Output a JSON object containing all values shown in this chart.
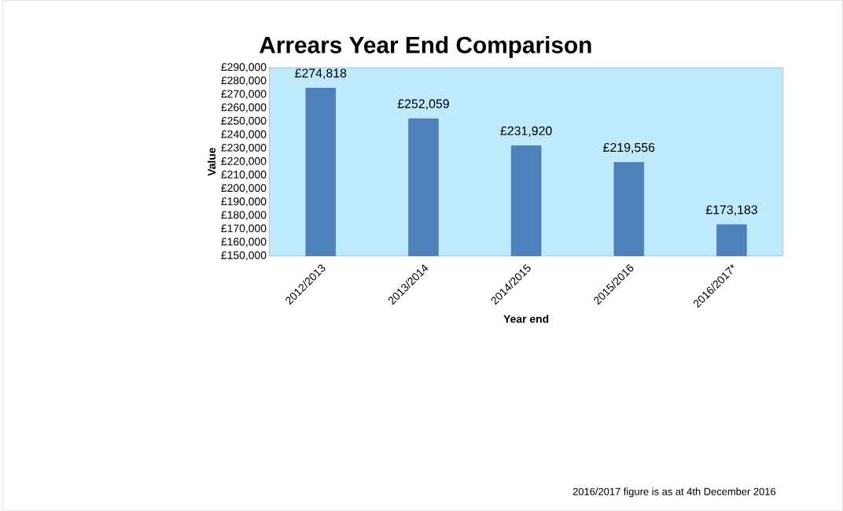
{
  "chart_data": {
    "type": "bar",
    "title": "Arrears Year End Comparison",
    "xlabel": "Year end",
    "ylabel": "Value",
    "categories": [
      "2012/2013",
      "2013/2014",
      "2014/2015",
      "2015/2016",
      "2016/2017*"
    ],
    "values": [
      274818,
      252059,
      231920,
      219556,
      173183
    ],
    "value_labels": [
      "£274,818",
      "£252,059",
      "£231,920",
      "£219,556",
      "£173,183"
    ],
    "color": "#4f81bd",
    "ylim": [
      150000,
      290000
    ],
    "yticks": [
      {
        "value": 150000,
        "label": "£150,000"
      },
      {
        "value": 160000,
        "label": "£160,000"
      },
      {
        "value": 170000,
        "label": "£170,000"
      },
      {
        "value": 180000,
        "label": "£180,000"
      },
      {
        "value": 190000,
        "label": "£190,000"
      },
      {
        "value": 200000,
        "label": "£200,000"
      },
      {
        "value": 210000,
        "label": "£210,000"
      },
      {
        "value": 220000,
        "label": "£220,000"
      },
      {
        "value": 230000,
        "label": "£230,000"
      },
      {
        "value": 240000,
        "label": "£240,000"
      },
      {
        "value": 250000,
        "label": "£250,000"
      },
      {
        "value": 260000,
        "label": "£260,000"
      },
      {
        "value": 270000,
        "label": "£270,000"
      },
      {
        "value": 280000,
        "label": "£280,000"
      },
      {
        "value": 290000,
        "label": "£290,000"
      }
    ],
    "annotations": [
      "2016/2017 figure is as at 4th December 2016"
    ]
  }
}
